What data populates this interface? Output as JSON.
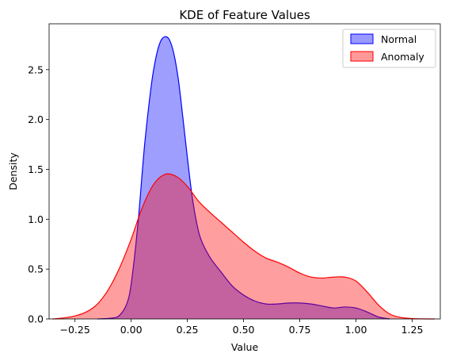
{
  "chart_data": {
    "type": "area",
    "title": "KDE of Feature Values",
    "xlabel": "Value",
    "ylabel": "Density",
    "xlim": [
      -0.365,
      1.375
    ],
    "ylim": [
      0.0,
      2.96
    ],
    "xticks": [
      -0.25,
      0.0,
      0.25,
      0.5,
      0.75,
      1.0,
      1.25
    ],
    "xtick_labels": [
      "−0.25",
      "0.00",
      "0.25",
      "0.50",
      "0.75",
      "1.00",
      "1.25"
    ],
    "yticks": [
      0.0,
      0.5,
      1.0,
      1.5,
      2.0,
      2.5
    ],
    "ytick_labels": [
      "0.0",
      "0.5",
      "1.0",
      "1.5",
      "2.0",
      "2.5"
    ],
    "grid": false,
    "legend_position": "top-right",
    "series": [
      {
        "name": "Normal",
        "fill": "#0000ff",
        "fill_opacity": 0.38,
        "line": "#0000ff",
        "x": [
          -0.15,
          -0.08,
          -0.05,
          -0.02,
          0.0,
          0.03,
          0.06,
          0.09,
          0.11,
          0.13,
          0.15,
          0.17,
          0.19,
          0.21,
          0.23,
          0.25,
          0.27,
          0.29,
          0.31,
          0.35,
          0.4,
          0.45,
          0.5,
          0.55,
          0.6,
          0.65,
          0.7,
          0.75,
          0.8,
          0.85,
          0.9,
          0.95,
          1.0,
          1.05,
          1.1,
          1.15
        ],
        "y": [
          0.0,
          0.01,
          0.04,
          0.15,
          0.35,
          0.95,
          1.75,
          2.35,
          2.62,
          2.78,
          2.83,
          2.8,
          2.66,
          2.4,
          2.02,
          1.62,
          1.25,
          0.98,
          0.8,
          0.62,
          0.47,
          0.33,
          0.24,
          0.18,
          0.15,
          0.15,
          0.16,
          0.16,
          0.15,
          0.13,
          0.11,
          0.12,
          0.11,
          0.07,
          0.02,
          0.0
        ]
      },
      {
        "name": "Anomaly",
        "fill": "#ff0000",
        "fill_opacity": 0.38,
        "line": "#ff0000",
        "x": [
          -0.35,
          -0.3,
          -0.25,
          -0.2,
          -0.15,
          -0.1,
          -0.05,
          0.0,
          0.05,
          0.1,
          0.15,
          0.2,
          0.25,
          0.3,
          0.35,
          0.4,
          0.45,
          0.5,
          0.55,
          0.6,
          0.65,
          0.7,
          0.75,
          0.8,
          0.85,
          0.9,
          0.95,
          1.0,
          1.05,
          1.1,
          1.15,
          1.2,
          1.25,
          1.3,
          1.35
        ],
        "y": [
          0.0,
          0.01,
          0.03,
          0.07,
          0.15,
          0.3,
          0.52,
          0.8,
          1.12,
          1.35,
          1.45,
          1.43,
          1.33,
          1.18,
          1.07,
          0.97,
          0.87,
          0.77,
          0.68,
          0.61,
          0.57,
          0.52,
          0.46,
          0.42,
          0.41,
          0.42,
          0.42,
          0.38,
          0.27,
          0.14,
          0.05,
          0.015,
          0.004,
          0.001,
          0.0
        ]
      }
    ]
  }
}
